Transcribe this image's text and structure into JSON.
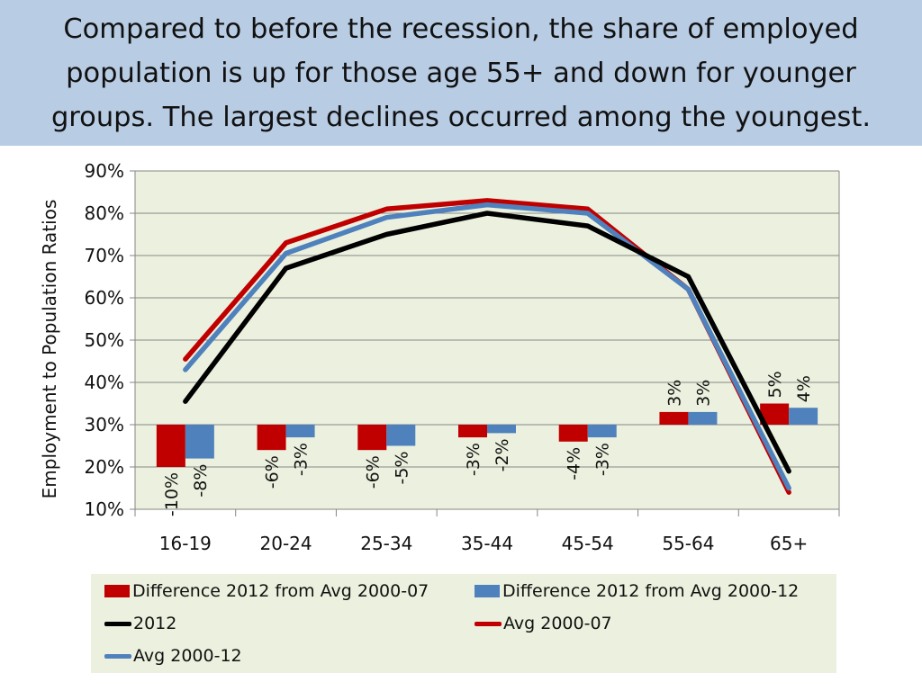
{
  "title": "Compared to before the recession, the share of employed population is up for those age 55+ and down for younger groups. The largest declines occurred among the youngest.",
  "chart_data": {
    "type": "line",
    "title": "",
    "xlabel": "",
    "ylabel": "Employment to Population Ratios",
    "categories": [
      "16-19",
      "20-24",
      "25-34",
      "35-44",
      "45-54",
      "55-64",
      "65+"
    ],
    "y_ticks": [
      "90%",
      "80%",
      "70%",
      "60%",
      "50%",
      "40%",
      "30%",
      "20%",
      "10%"
    ],
    "ylim": [
      10,
      90
    ],
    "bar_baseline": 30,
    "grid": true,
    "legend_position": "bottom",
    "colors": {
      "plot_bg": "#ebf1de",
      "title_bg": "#b8cce4",
      "grid": "#868686",
      "diff_0007": "#c00000",
      "diff_0012": "#4f81bd",
      "line_2012": "#000000",
      "line_avg_0007": "#c00000",
      "line_avg_0012": "#4f81bd"
    },
    "bar_series": [
      {
        "name": "Difference 2012 from Avg 2000-07",
        "color_key": "diff_0007",
        "values": [
          -10,
          -6,
          -6,
          -3,
          -4,
          3,
          5
        ],
        "labels": [
          "-10%",
          "-6%",
          "-6%",
          "-3%",
          "-4%",
          "3%",
          "5%"
        ]
      },
      {
        "name": "Difference 2012 from Avg 2000-12",
        "color_key": "diff_0012",
        "values": [
          -8,
          -3,
          -5,
          -2,
          -3,
          3,
          4
        ],
        "labels": [
          "-8%",
          "-3%",
          "-5%",
          "-2%",
          "-3%",
          "3%",
          "4%"
        ]
      }
    ],
    "line_series": [
      {
        "name": "Avg 2000-07",
        "color_key": "line_avg_0007",
        "values": [
          45.5,
          73,
          81,
          83,
          81,
          62,
          14
        ]
      },
      {
        "name": "Avg 2000-12",
        "color_key": "line_avg_0012",
        "values": [
          43,
          70.5,
          79,
          82,
          80,
          62,
          15
        ]
      },
      {
        "name": "2012",
        "color_key": "line_2012",
        "values": [
          35.5,
          67,
          75,
          80,
          77,
          65,
          19
        ]
      }
    ],
    "legend": [
      {
        "label": "Difference 2012 from Avg 2000-07",
        "kind": "box",
        "color_key": "diff_0007"
      },
      {
        "label": "Difference 2012 from Avg 2000-12",
        "kind": "box",
        "color_key": "diff_0012"
      },
      {
        "label": "2012",
        "kind": "line",
        "color_key": "line_2012"
      },
      {
        "label": "Avg 2000-07",
        "kind": "line",
        "color_key": "line_avg_0007"
      },
      {
        "label": "Avg 2000-12",
        "kind": "line",
        "color_key": "line_avg_0012"
      }
    ]
  }
}
